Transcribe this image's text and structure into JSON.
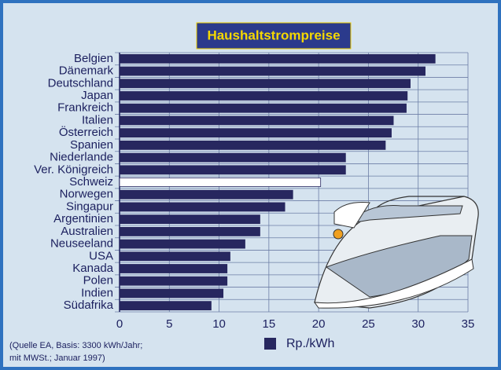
{
  "chart_data": {
    "type": "hbar",
    "title": "Haushaltstrompreise",
    "categories": [
      "Belgien",
      "Dänemark",
      "Deutschland",
      "Japan",
      "Frankreich",
      "Italien",
      "Österreich",
      "Spanien",
      "Niederlande",
      "Ver. Königreich",
      "Schweiz",
      "Norwegen",
      "Singapur",
      "Argentinien",
      "Australien",
      "Neuseeland",
      "USA",
      "Kanada",
      "Polen",
      "Indien",
      "Südafrika"
    ],
    "series": [
      {
        "name": "Rp./kWh",
        "color": "#27275f",
        "values": [
          31.7,
          30.7,
          29.2,
          28.9,
          28.8,
          27.5,
          27.3,
          26.7,
          22.7,
          22.7,
          20.2,
          17.4,
          16.6,
          14.1,
          14.1,
          12.6,
          11.1,
          10.8,
          10.8,
          10.4,
          9.2
        ],
        "bar_colors": [
          "#27275f",
          "#27275f",
          "#27275f",
          "#27275f",
          "#27275f",
          "#27275f",
          "#27275f",
          "#27275f",
          "#27275f",
          "#27275f",
          "#ffffff",
          "#27275f",
          "#27275f",
          "#27275f",
          "#27275f",
          "#27275f",
          "#27275f",
          "#27275f",
          "#27275f",
          "#27275f",
          "#27275f"
        ]
      }
    ],
    "xlim": [
      0,
      35
    ],
    "xticks": [
      0,
      5,
      10,
      15,
      20,
      25,
      30,
      35
    ],
    "grid": true,
    "source": [
      "(Quelle EA, Basis: 3300 kWh/Jahr;",
      "mit MWSt.; Januar 1997)"
    ]
  }
}
